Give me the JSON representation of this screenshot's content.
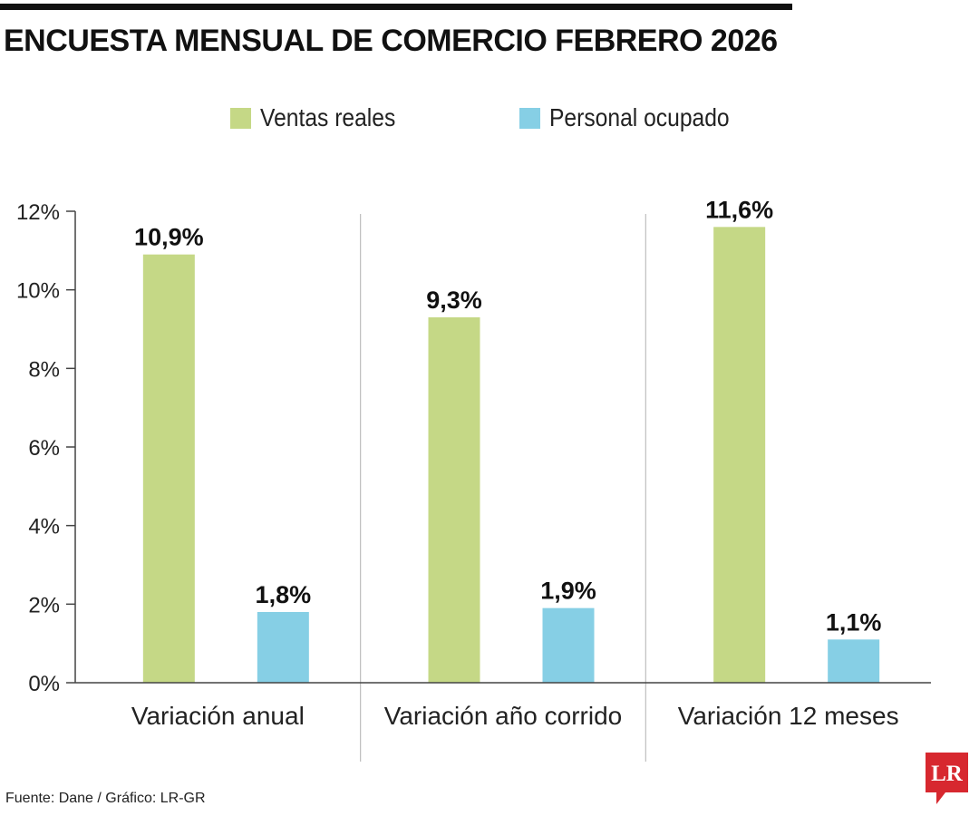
{
  "chart_data": {
    "type": "bar",
    "title": "ENCUESTA MENSUAL DE COMERCIO FEBRERO 2026",
    "categories": [
      "Variación anual",
      "Variación año corrido",
      "Variación 12 meses"
    ],
    "series": [
      {
        "name": "Ventas reales",
        "color": "#c5d886",
        "values": [
          10.9,
          9.3,
          11.6
        ],
        "labels": [
          "10,9%",
          "9,3%",
          "11,6%"
        ]
      },
      {
        "name": "Personal ocupado",
        "color": "#86cfe5",
        "values": [
          1.8,
          1.9,
          1.1
        ],
        "labels": [
          "1,8%",
          "1,9%",
          "1,1%"
        ]
      }
    ],
    "ylim": [
      0,
      12
    ],
    "yticks": [
      0,
      2,
      4,
      6,
      8,
      10,
      12
    ],
    "ytick_labels": [
      "0%",
      "2%",
      "4%",
      "6%",
      "8%",
      "10%",
      "12%"
    ],
    "xlabel": "",
    "ylabel": "",
    "legend_position": "top-center",
    "grid": false
  },
  "footer": {
    "source": "Fuente: Dane / Gráfico: LR-GR",
    "logo_text": "LR",
    "logo_color": "#d7282f"
  }
}
